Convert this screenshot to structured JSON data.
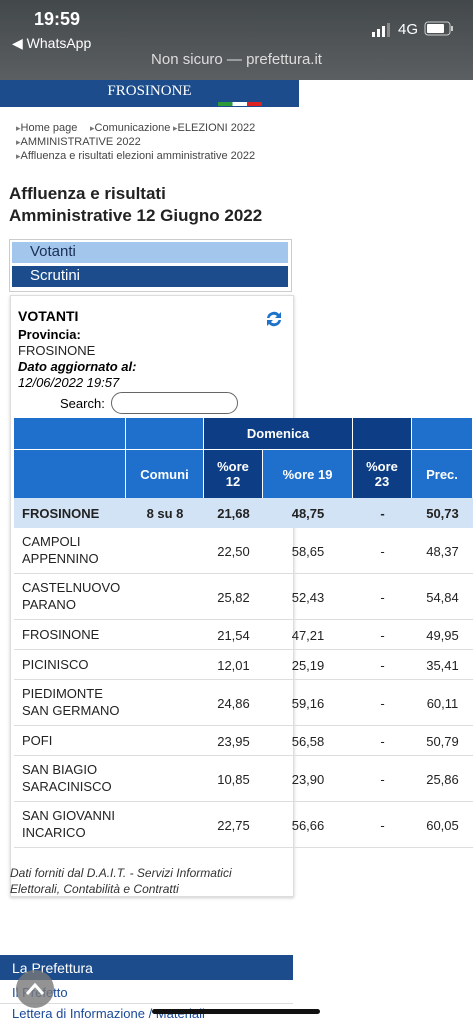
{
  "status_bar": {
    "time": "19:59",
    "back_app": "◀ WhatsApp",
    "url": "Non sicuro — prefettura.it",
    "network": "4G"
  },
  "header": {
    "title": "FROSINONE"
  },
  "breadcrumbs": [
    "Home page",
    "Comunicazione",
    "ELEZIONI 2022",
    "AMMINISTRATIVE 2022",
    "Affluenza e risultati elezioni amministrative 2022"
  ],
  "page_title": [
    "Affluenza e risultati",
    "Amministrative 12 Giugno 2022"
  ],
  "menu": [
    "Votanti",
    "Scrutini"
  ],
  "panel": {
    "heading": "VOTANTI",
    "province_label": "Provincia:",
    "province": "FROSINONE",
    "updated_label": "Dato aggiornato al:",
    "updated": "12/06/2022 19:57",
    "search_label": "Search:"
  },
  "table": {
    "group": "Domenica",
    "columns": [
      "Comuni",
      "%ore 12",
      "%ore 19",
      "%ore 23",
      "Prec."
    ],
    "province_row": {
      "name": "FROSINONE",
      "cells": [
        "8 su 8",
        "21,68",
        "48,75",
        "-",
        "50,73"
      ]
    },
    "rows": [
      {
        "name": [
          "CAMPOLI",
          "APPENNINO"
        ],
        "cells": [
          "22,50",
          "58,65",
          "-",
          "48,37"
        ]
      },
      {
        "name": [
          "CASTELNUOVO",
          "PARANO"
        ],
        "cells": [
          "25,82",
          "52,43",
          "-",
          "54,84"
        ]
      },
      {
        "name": [
          "FROSINONE"
        ],
        "cells": [
          "21,54",
          "47,21",
          "-",
          "49,95"
        ]
      },
      {
        "name": [
          "PICINISCO"
        ],
        "cells": [
          "12,01",
          "25,19",
          "-",
          "35,41"
        ]
      },
      {
        "name": [
          "PIEDIMONTE",
          "SAN GERMANO"
        ],
        "cells": [
          "24,86",
          "59,16",
          "-",
          "60,11"
        ]
      },
      {
        "name": [
          "POFI"
        ],
        "cells": [
          "23,95",
          "56,58",
          "-",
          "50,79"
        ]
      },
      {
        "name": [
          "SAN BIAGIO",
          "SARACINISCO"
        ],
        "cells": [
          "10,85",
          "23,90",
          "-",
          "25,86"
        ]
      },
      {
        "name": [
          "SAN GIOVANNI",
          "INCARICO"
        ],
        "cells": [
          "22,75",
          "56,66",
          "-",
          "60,05"
        ]
      }
    ]
  },
  "footnote": [
    "Dati forniti dal D.A.I.T. - Servizi Informatici",
    "Elettorali, Contabilità e Contratti"
  ],
  "footer": {
    "section": "La Prefettura",
    "links": [
      "Il Prefetto",
      "Lettera di Informazione / Materiali"
    ]
  }
}
